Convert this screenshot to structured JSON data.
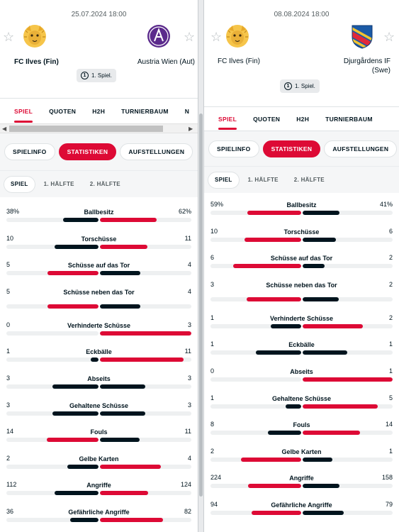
{
  "left": {
    "date": "25.07.2024 18:00",
    "home_team": "FC Ilves (Fin)",
    "away_team": "Austria Wien (Aut)",
    "round_badge": "1. Spiel.",
    "tabs": [
      "SPIEL",
      "QUOTEN",
      "H2H",
      "TURNIERBAUM",
      "N"
    ],
    "subtabs": [
      "SPIELINFO",
      "STATISTIKEN",
      "AUFSTELLUNGEN"
    ],
    "periods": [
      "SPIEL",
      "1. HÄLFTE",
      "2. HÄLFTE"
    ],
    "stats": [
      {
        "label": "Ballbesitz",
        "home": "38%",
        "away": "62%",
        "h": 38,
        "a": 62
      },
      {
        "label": "Torschüsse",
        "home": "10",
        "away": "11",
        "h": 10,
        "a": 11
      },
      {
        "label": "Schüsse auf das Tor",
        "home": "5",
        "away": "4",
        "h": 5,
        "a": 4
      },
      {
        "label": "Schüsse neben das Tor",
        "home": "5",
        "away": "4",
        "h": 5,
        "a": 4
      },
      {
        "label": "Verhinderte Schüsse",
        "home": "0",
        "away": "3",
        "h": 0,
        "a": 3
      },
      {
        "label": "Eckbälle",
        "home": "1",
        "away": "11",
        "h": 1,
        "a": 11
      },
      {
        "label": "Abseits",
        "home": "3",
        "away": "3",
        "h": 3,
        "a": 3
      },
      {
        "label": "Gehaltene Schüsse",
        "home": "3",
        "away": "3",
        "h": 3,
        "a": 3
      },
      {
        "label": "Fouls",
        "home": "14",
        "away": "11",
        "h": 14,
        "a": 11
      },
      {
        "label": "Gelbe Karten",
        "home": "2",
        "away": "4",
        "h": 2,
        "a": 4
      },
      {
        "label": "Angriffe",
        "home": "112",
        "away": "124",
        "h": 112,
        "a": 124
      },
      {
        "label": "Gefährliche Angriffe",
        "home": "36",
        "away": "82",
        "h": 36,
        "a": 82
      }
    ]
  },
  "right": {
    "date": "08.08.2024 18:00",
    "home_team": "FC Ilves (Fin)",
    "away_team": "Djurgårdens IF (Swe)",
    "round_badge": "1. Spiel.",
    "tabs": [
      "SPIEL",
      "QUOTEN",
      "H2H",
      "TURNIERBAUM"
    ],
    "subtabs": [
      "SPIELINFO",
      "STATISTIKEN",
      "AUFSTELLUNGEN"
    ],
    "periods": [
      "SPIEL",
      "1. HÄLFTE",
      "2. HÄLFTE"
    ],
    "stats": [
      {
        "label": "Ballbesitz",
        "home": "59%",
        "away": "41%",
        "h": 59,
        "a": 41
      },
      {
        "label": "Torschüsse",
        "home": "10",
        "away": "6",
        "h": 10,
        "a": 6
      },
      {
        "label": "Schüsse auf das Tor",
        "home": "6",
        "away": "2",
        "h": 6,
        "a": 2
      },
      {
        "label": "Schüsse neben das Tor",
        "home": "3",
        "away": "2",
        "h": 3,
        "a": 2
      },
      {
        "label": "Verhinderte Schüsse",
        "home": "1",
        "away": "2",
        "h": 1,
        "a": 2
      },
      {
        "label": "Eckbälle",
        "home": "1",
        "away": "1",
        "h": 1,
        "a": 1
      },
      {
        "label": "Abseits",
        "home": "0",
        "away": "1",
        "h": 0,
        "a": 1
      },
      {
        "label": "Gehaltene Schüsse",
        "home": "1",
        "away": "5",
        "h": 1,
        "a": 5
      },
      {
        "label": "Fouls",
        "home": "8",
        "away": "14",
        "h": 8,
        "a": 14
      },
      {
        "label": "Gelbe Karten",
        "home": "2",
        "away": "1",
        "h": 2,
        "a": 1
      },
      {
        "label": "Angriffe",
        "home": "224",
        "away": "158",
        "h": 224,
        "a": 158
      },
      {
        "label": "Gefährliche Angriffe",
        "home": "94",
        "away": "79",
        "h": 94,
        "a": 79
      }
    ]
  },
  "colors": {
    "accent": "#dd0a35",
    "dark": "#00141e",
    "track": "#eef0f1"
  }
}
